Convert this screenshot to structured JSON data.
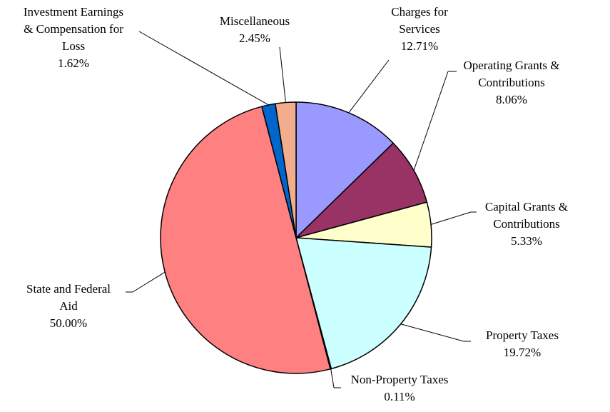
{
  "chart_data": {
    "type": "pie",
    "categories": [
      "Charges for\nServices",
      "Operating Grants &\nContributions",
      "Capital Grants &\nContributions",
      "Property Taxes",
      "Non-Property Taxes",
      "State and Federal\nAid",
      "Investment Earnings\n& Compensation for\nLoss",
      "Miscellaneous"
    ],
    "values": [
      12.71,
      8.06,
      5.33,
      19.72,
      0.11,
      50.0,
      1.62,
      2.45
    ],
    "value_labels": [
      "12.71%",
      "8.06%",
      "5.33%",
      "19.72%",
      "0.11%",
      "50.00%",
      "1.62%",
      "2.45%"
    ],
    "colors": [
      "#9999ff",
      "#993366",
      "#ffffcc",
      "#ccffff",
      "#333399",
      "#ff8080",
      "#0066cc",
      "#f2ae8c"
    ]
  }
}
